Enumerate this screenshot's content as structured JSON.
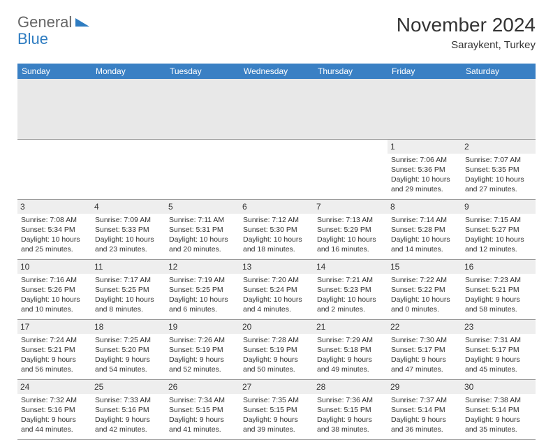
{
  "logo": {
    "text1": "General",
    "text2": "Blue"
  },
  "header": {
    "title": "November 2024",
    "subtitle": "Saraykent, Turkey"
  },
  "style": {
    "header_bg": "#3a80c4",
    "header_text": "#ffffff",
    "daynum_bg": "#eeeeee",
    "border_color": "#999999",
    "page_bg": "#ffffff",
    "font_size_body": 10.5,
    "font_size_title": 28
  },
  "columns": [
    "Sunday",
    "Monday",
    "Tuesday",
    "Wednesday",
    "Thursday",
    "Friday",
    "Saturday"
  ],
  "weeks": [
    [
      null,
      null,
      null,
      null,
      null,
      {
        "num": "1",
        "sunrise": "Sunrise: 7:06 AM",
        "sunset": "Sunset: 5:36 PM",
        "dl1": "Daylight: 10 hours",
        "dl2": "and 29 minutes."
      },
      {
        "num": "2",
        "sunrise": "Sunrise: 7:07 AM",
        "sunset": "Sunset: 5:35 PM",
        "dl1": "Daylight: 10 hours",
        "dl2": "and 27 minutes."
      }
    ],
    [
      {
        "num": "3",
        "sunrise": "Sunrise: 7:08 AM",
        "sunset": "Sunset: 5:34 PM",
        "dl1": "Daylight: 10 hours",
        "dl2": "and 25 minutes."
      },
      {
        "num": "4",
        "sunrise": "Sunrise: 7:09 AM",
        "sunset": "Sunset: 5:33 PM",
        "dl1": "Daylight: 10 hours",
        "dl2": "and 23 minutes."
      },
      {
        "num": "5",
        "sunrise": "Sunrise: 7:11 AM",
        "sunset": "Sunset: 5:31 PM",
        "dl1": "Daylight: 10 hours",
        "dl2": "and 20 minutes."
      },
      {
        "num": "6",
        "sunrise": "Sunrise: 7:12 AM",
        "sunset": "Sunset: 5:30 PM",
        "dl1": "Daylight: 10 hours",
        "dl2": "and 18 minutes."
      },
      {
        "num": "7",
        "sunrise": "Sunrise: 7:13 AM",
        "sunset": "Sunset: 5:29 PM",
        "dl1": "Daylight: 10 hours",
        "dl2": "and 16 minutes."
      },
      {
        "num": "8",
        "sunrise": "Sunrise: 7:14 AM",
        "sunset": "Sunset: 5:28 PM",
        "dl1": "Daylight: 10 hours",
        "dl2": "and 14 minutes."
      },
      {
        "num": "9",
        "sunrise": "Sunrise: 7:15 AM",
        "sunset": "Sunset: 5:27 PM",
        "dl1": "Daylight: 10 hours",
        "dl2": "and 12 minutes."
      }
    ],
    [
      {
        "num": "10",
        "sunrise": "Sunrise: 7:16 AM",
        "sunset": "Sunset: 5:26 PM",
        "dl1": "Daylight: 10 hours",
        "dl2": "and 10 minutes."
      },
      {
        "num": "11",
        "sunrise": "Sunrise: 7:17 AM",
        "sunset": "Sunset: 5:25 PM",
        "dl1": "Daylight: 10 hours",
        "dl2": "and 8 minutes."
      },
      {
        "num": "12",
        "sunrise": "Sunrise: 7:19 AM",
        "sunset": "Sunset: 5:25 PM",
        "dl1": "Daylight: 10 hours",
        "dl2": "and 6 minutes."
      },
      {
        "num": "13",
        "sunrise": "Sunrise: 7:20 AM",
        "sunset": "Sunset: 5:24 PM",
        "dl1": "Daylight: 10 hours",
        "dl2": "and 4 minutes."
      },
      {
        "num": "14",
        "sunrise": "Sunrise: 7:21 AM",
        "sunset": "Sunset: 5:23 PM",
        "dl1": "Daylight: 10 hours",
        "dl2": "and 2 minutes."
      },
      {
        "num": "15",
        "sunrise": "Sunrise: 7:22 AM",
        "sunset": "Sunset: 5:22 PM",
        "dl1": "Daylight: 10 hours",
        "dl2": "and 0 minutes."
      },
      {
        "num": "16",
        "sunrise": "Sunrise: 7:23 AM",
        "sunset": "Sunset: 5:21 PM",
        "dl1": "Daylight: 9 hours",
        "dl2": "and 58 minutes."
      }
    ],
    [
      {
        "num": "17",
        "sunrise": "Sunrise: 7:24 AM",
        "sunset": "Sunset: 5:21 PM",
        "dl1": "Daylight: 9 hours",
        "dl2": "and 56 minutes."
      },
      {
        "num": "18",
        "sunrise": "Sunrise: 7:25 AM",
        "sunset": "Sunset: 5:20 PM",
        "dl1": "Daylight: 9 hours",
        "dl2": "and 54 minutes."
      },
      {
        "num": "19",
        "sunrise": "Sunrise: 7:26 AM",
        "sunset": "Sunset: 5:19 PM",
        "dl1": "Daylight: 9 hours",
        "dl2": "and 52 minutes."
      },
      {
        "num": "20",
        "sunrise": "Sunrise: 7:28 AM",
        "sunset": "Sunset: 5:19 PM",
        "dl1": "Daylight: 9 hours",
        "dl2": "and 50 minutes."
      },
      {
        "num": "21",
        "sunrise": "Sunrise: 7:29 AM",
        "sunset": "Sunset: 5:18 PM",
        "dl1": "Daylight: 9 hours",
        "dl2": "and 49 minutes."
      },
      {
        "num": "22",
        "sunrise": "Sunrise: 7:30 AM",
        "sunset": "Sunset: 5:17 PM",
        "dl1": "Daylight: 9 hours",
        "dl2": "and 47 minutes."
      },
      {
        "num": "23",
        "sunrise": "Sunrise: 7:31 AM",
        "sunset": "Sunset: 5:17 PM",
        "dl1": "Daylight: 9 hours",
        "dl2": "and 45 minutes."
      }
    ],
    [
      {
        "num": "24",
        "sunrise": "Sunrise: 7:32 AM",
        "sunset": "Sunset: 5:16 PM",
        "dl1": "Daylight: 9 hours",
        "dl2": "and 44 minutes."
      },
      {
        "num": "25",
        "sunrise": "Sunrise: 7:33 AM",
        "sunset": "Sunset: 5:16 PM",
        "dl1": "Daylight: 9 hours",
        "dl2": "and 42 minutes."
      },
      {
        "num": "26",
        "sunrise": "Sunrise: 7:34 AM",
        "sunset": "Sunset: 5:15 PM",
        "dl1": "Daylight: 9 hours",
        "dl2": "and 41 minutes."
      },
      {
        "num": "27",
        "sunrise": "Sunrise: 7:35 AM",
        "sunset": "Sunset: 5:15 PM",
        "dl1": "Daylight: 9 hours",
        "dl2": "and 39 minutes."
      },
      {
        "num": "28",
        "sunrise": "Sunrise: 7:36 AM",
        "sunset": "Sunset: 5:15 PM",
        "dl1": "Daylight: 9 hours",
        "dl2": "and 38 minutes."
      },
      {
        "num": "29",
        "sunrise": "Sunrise: 7:37 AM",
        "sunset": "Sunset: 5:14 PM",
        "dl1": "Daylight: 9 hours",
        "dl2": "and 36 minutes."
      },
      {
        "num": "30",
        "sunrise": "Sunrise: 7:38 AM",
        "sunset": "Sunset: 5:14 PM",
        "dl1": "Daylight: 9 hours",
        "dl2": "and 35 minutes."
      }
    ]
  ]
}
